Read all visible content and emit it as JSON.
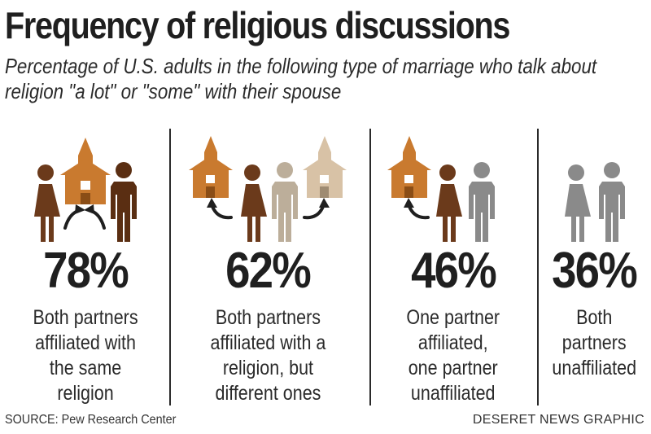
{
  "title": "Frequency of religious discussions",
  "subtitle": "Percentage of U.S. adults in the following type of marriage who talk about religion \"a lot\" or \"some\" with their spouse",
  "colors": {
    "church_dark": "#c97a2f",
    "church_light": "#d8c2a6",
    "woman_brown": "#6b3a1b",
    "man_brown": "#5a2e12",
    "man_tan": "#bcae9a",
    "gray": "#8a8a8a",
    "text": "#1f1f1f"
  },
  "chart_data": {
    "type": "table",
    "title": "Frequency of religious discussions",
    "subtitle": "Percentage of U.S. adults in the following type of marriage who talk about religion \"a lot\" or \"some\" with their spouse",
    "categories": [
      "Both partners affiliated with the same religion",
      "Both partners affiliated with a religion, but different ones",
      "One partner affiliated, one partner unaffiliated",
      "Both partners unaffiliated"
    ],
    "values": [
      78,
      62,
      46,
      36
    ],
    "unit": "%"
  },
  "panels": [
    {
      "pct": "78%",
      "desc": "Both partners\naffiliated with\nthe same\nreligion"
    },
    {
      "pct": "62%",
      "desc": "Both partners\naffiliated with a\nreligion, but\ndifferent ones"
    },
    {
      "pct": "46%",
      "desc": "One partner\naffiliated,\none partner\nunaffiliated"
    },
    {
      "pct": "36%",
      "desc": "Both\npartners\nunaffiliated"
    }
  ],
  "source": "SOURCE: Pew Research Center",
  "credit": "DESERET NEWS GRAPHIC"
}
